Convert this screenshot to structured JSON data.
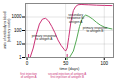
{
  "chart_data": {
    "type": "line",
    "xlabel": "time (days)",
    "ylabel": "units of antibody in blood\n(arbitrary scale)",
    "log": "y",
    "grid": true,
    "xlim": [
      -2,
      112
    ],
    "xticks": [
      0,
      50,
      100
    ],
    "ylim": [
      1,
      10000
    ],
    "yticks": [
      1,
      10,
      100,
      1000
    ],
    "series": [
      {
        "color": "#cc3377",
        "x": [
          0,
          4,
          8,
          12,
          16,
          20,
          24,
          28,
          32,
          36,
          40,
          44,
          48,
          50,
          52,
          54,
          57,
          60,
          63,
          66,
          70,
          75,
          80,
          90,
          100,
          110
        ],
        "values": [
          1,
          1,
          5,
          50,
          300,
          700,
          800,
          500,
          200,
          70,
          20,
          8,
          4,
          3,
          5,
          30,
          500,
          3000,
          6000,
          8000,
          8500,
          8200,
          8000,
          7500,
          7200,
          7000
        ]
      },
      {
        "color": "#55aa55",
        "x": [
          50,
          55,
          60,
          64,
          68,
          72,
          76,
          80,
          85,
          90,
          95,
          100,
          105,
          110
        ],
        "values": [
          1,
          1,
          3,
          20,
          200,
          900,
          1400,
          1100,
          700,
          400,
          250,
          180,
          150,
          130
        ]
      }
    ],
    "annotations": [
      {
        "text": "primary response\nto antigen A",
        "x": 22,
        "y": 30
      },
      {
        "text": "secondary\nresponse to\nantigen A",
        "x": 63,
        "y": 800
      },
      {
        "text": "primary response\nto antigen B",
        "x": 88,
        "y": 120
      }
    ],
    "injections": [
      {
        "x": 2,
        "label": "first injection\nof antigen A",
        "colors": [
          "#cc3377"
        ]
      },
      {
        "x": 52,
        "label": "second injection of antigen A\nfirst injection of antigen B",
        "colors": [
          "#cc3377",
          "#55aa55"
        ]
      }
    ]
  }
}
